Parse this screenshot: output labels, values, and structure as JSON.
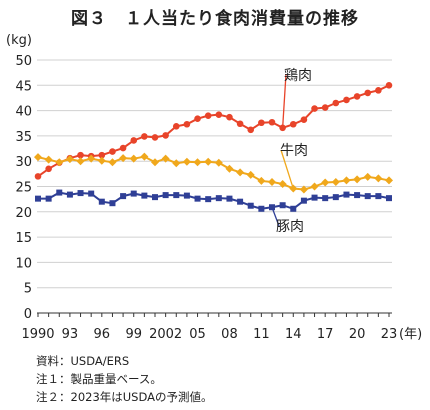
{
  "chart_data": {
    "type": "line",
    "title": "図３　１人当たり食肉消費量の推移",
    "ylabel": "(kg)",
    "xlabel": "(年)",
    "ylim": [
      0,
      50
    ],
    "yticks": [
      0,
      5,
      10,
      15,
      20,
      25,
      30,
      35,
      40,
      45,
      50
    ],
    "x": [
      1990,
      1991,
      1992,
      1993,
      1994,
      1995,
      1996,
      1997,
      1998,
      1999,
      2000,
      2001,
      2002,
      2003,
      2004,
      2005,
      2006,
      2007,
      2008,
      2009,
      2010,
      2011,
      2012,
      2013,
      2014,
      2015,
      2016,
      2017,
      2018,
      2019,
      2020,
      2021,
      2022,
      2023
    ],
    "xticks": [
      {
        "x": 1990,
        "label": "1990"
      },
      {
        "x": 1993,
        "label": "93"
      },
      {
        "x": 1996,
        "label": "96"
      },
      {
        "x": 1999,
        "label": "99"
      },
      {
        "x": 2002,
        "label": "2002"
      },
      {
        "x": 2005,
        "label": "05"
      },
      {
        "x": 2008,
        "label": "08"
      },
      {
        "x": 2011,
        "label": "11"
      },
      {
        "x": 2014,
        "label": "14"
      },
      {
        "x": 2017,
        "label": "17"
      },
      {
        "x": 2020,
        "label": "20"
      },
      {
        "x": 2023,
        "label": "23"
      }
    ],
    "grid": true,
    "series": [
      {
        "name": "鶏肉",
        "color": "#e8442a",
        "marker": "circle",
        "values": [
          27.0,
          28.5,
          29.7,
          30.6,
          31.2,
          31.0,
          31.2,
          31.9,
          32.6,
          34.1,
          34.9,
          34.7,
          35.1,
          36.9,
          37.3,
          38.4,
          39.0,
          39.2,
          38.7,
          37.4,
          36.2,
          37.6,
          37.7,
          36.6,
          37.3,
          38.2,
          40.4,
          40.6,
          41.5,
          42.1,
          42.8,
          43.5,
          44.0,
          45.0
        ]
      },
      {
        "name": "牛肉",
        "color": "#f0a81c",
        "marker": "diamond",
        "values": [
          30.8,
          30.3,
          29.8,
          30.4,
          30.0,
          30.5,
          30.1,
          29.8,
          30.6,
          30.5,
          30.9,
          29.8,
          30.5,
          29.6,
          29.9,
          29.8,
          29.9,
          29.7,
          28.5,
          27.8,
          27.3,
          26.1,
          25.9,
          25.5,
          24.6,
          24.4,
          25.0,
          25.8,
          25.9,
          26.2,
          26.4,
          26.9,
          26.6,
          26.2
        ]
      },
      {
        "name": "豚肉",
        "color": "#2f3f96",
        "marker": "square",
        "values": [
          22.6,
          22.6,
          23.8,
          23.4,
          23.7,
          23.6,
          22.0,
          21.7,
          23.1,
          23.6,
          23.2,
          22.9,
          23.3,
          23.3,
          23.2,
          22.6,
          22.5,
          22.7,
          22.6,
          22.0,
          21.2,
          20.6,
          20.9,
          21.3,
          20.6,
          22.2,
          22.8,
          22.7,
          22.9,
          23.4,
          23.3,
          23.1,
          23.1,
          22.7
        ]
      }
    ]
  },
  "notes": [
    "資料：USDA/ERS",
    "注１：製品重量ベース。",
    "注２：2023年はUSDAの予測値。"
  ]
}
